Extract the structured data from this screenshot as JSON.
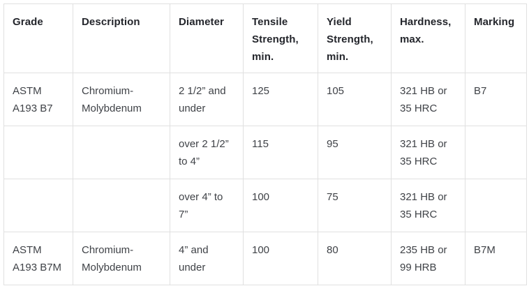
{
  "colors": {
    "background": "#ffffff",
    "border": "#e0e0e0",
    "header_text": "#24262c",
    "body_text": "#3f4247"
  },
  "table": {
    "headers": [
      "Grade",
      "Description",
      "Diameter",
      "Tensile Strength, min.",
      "Yield Strength, min.",
      "Hardness, max.",
      "Marking"
    ],
    "rows": [
      [
        "ASTM A193 B7",
        "Chromium-Molybdenum",
        "2 1/2” and under",
        "125",
        "105",
        "321 HB or 35 HRC",
        "B7"
      ],
      [
        "",
        "",
        "over 2 1/2” to 4”",
        "115",
        "95",
        "321 HB or 35 HRC",
        ""
      ],
      [
        "",
        "",
        "over 4” to 7”",
        "100",
        "75",
        "321 HB or 35 HRC",
        ""
      ],
      [
        "ASTM A193 B7M",
        "Chromium-Molybdenum",
        "4” and under",
        "100",
        "80",
        "235 HB or 99 HRB",
        "B7M"
      ]
    ]
  }
}
